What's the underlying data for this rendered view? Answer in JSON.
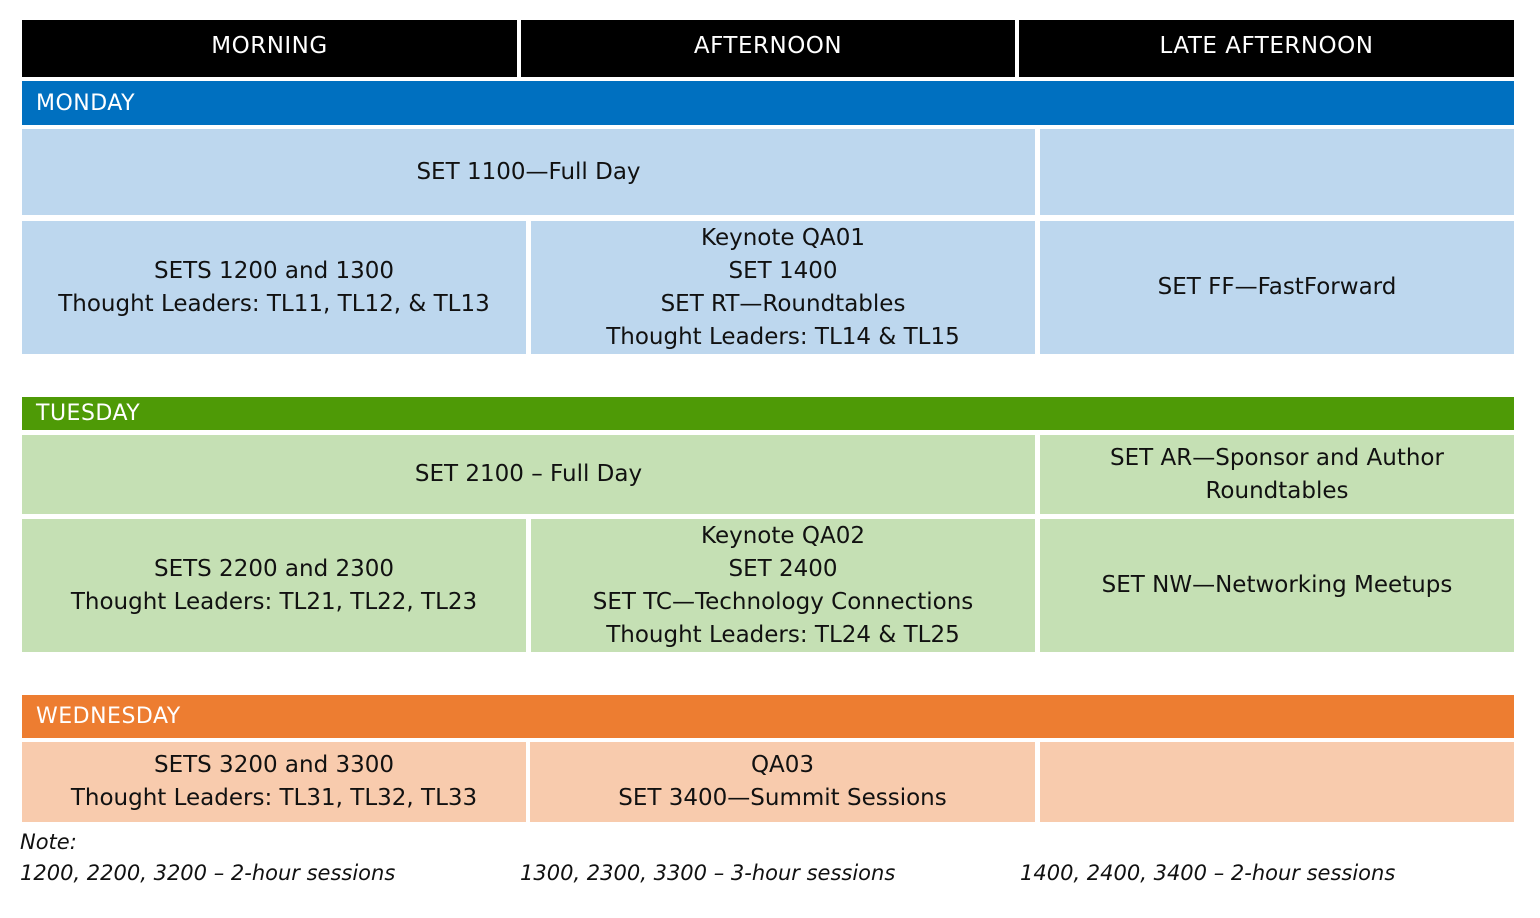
{
  "colors": {
    "header_bg": "#000000",
    "monday_bar": "#0070c0",
    "monday_cell": "#bdd7ee",
    "tuesday_bar": "#4e9a06",
    "tuesday_cell": "#c5e0b4",
    "wednesday_bar": "#ed7d31",
    "wednesday_cell": "#f8cbad"
  },
  "headers": [
    "MORNING",
    "AFTERNOON",
    "LATE AFTERNOON"
  ],
  "days": {
    "monday": {
      "label": "MONDAY",
      "row1": {
        "full": "SET 1100—Full Day",
        "late": ""
      },
      "row2": {
        "morning": [
          "SETS 1200 and 1300",
          "Thought Leaders: TL11, TL12, & TL13"
        ],
        "afternoon": [
          "Keynote QA01",
          "SET 1400",
          "SET RT—Roundtables",
          "Thought Leaders: TL14 & TL15"
        ],
        "late": [
          "SET FF—FastForward"
        ]
      }
    },
    "tuesday": {
      "label": "TUESDAY",
      "row1": {
        "full": "SET 2100 – Full Day",
        "late": [
          "SET AR—Sponsor and Author",
          "Roundtables"
        ]
      },
      "row2": {
        "morning": [
          "SETS 2200 and 2300",
          "Thought Leaders: TL21, TL22, TL23"
        ],
        "afternoon": [
          "Keynote QA02",
          "SET 2400",
          "SET TC—Technology Connections",
          "Thought Leaders: TL24 & TL25"
        ],
        "late": [
          "SET NW—Networking Meetups"
        ]
      }
    },
    "wednesday": {
      "label": "WEDNESDAY",
      "row1": {
        "morning": [
          "SETS 3200 and 3300",
          "Thought Leaders: TL31, TL32, TL33"
        ],
        "afternoon": [
          "QA03",
          "SET 3400—Summit Sessions"
        ],
        "late": ""
      }
    }
  },
  "note": {
    "label": "Note:",
    "items": [
      "1200, 2200, 3200 – 2-hour sessions",
      "1300, 2300, 3300 – 3-hour sessions",
      "1400, 2400, 3400 – 2-hour sessions"
    ]
  }
}
